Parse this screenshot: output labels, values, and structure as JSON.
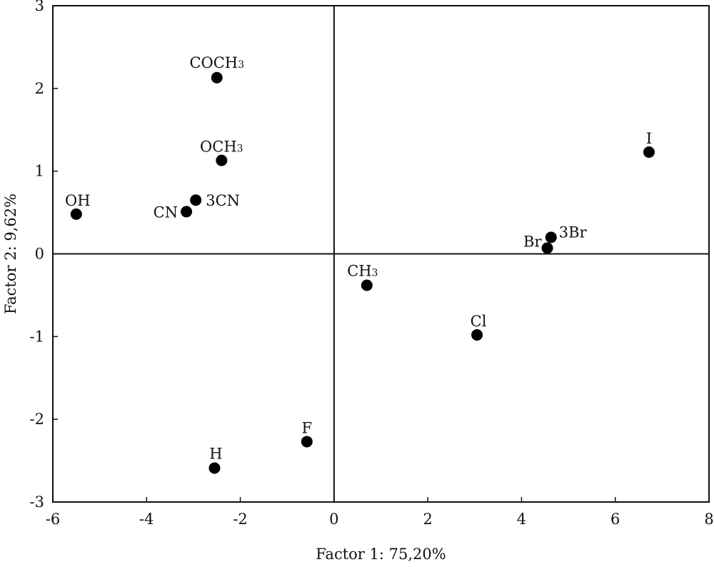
{
  "chart_data": {
    "type": "scatter",
    "title": "",
    "xlabel": "Factor 1: 75,20%",
    "ylabel": "Factor 2:  9,62%",
    "xlim": [
      -6,
      8
    ],
    "ylim": [
      -3,
      3
    ],
    "xticks": [
      -6,
      -4,
      -2,
      0,
      2,
      4,
      6,
      8
    ],
    "yticks": [
      -3,
      -2,
      -1,
      0,
      1,
      2,
      3
    ],
    "grid": false,
    "zero_lines": true,
    "point_color": "#000000",
    "points": [
      {
        "label": "COCH",
        "sub": "3",
        "x": -2.5,
        "y": 2.13
      },
      {
        "label": "OCH",
        "sub": "3",
        "x": -2.4,
        "y": 1.13
      },
      {
        "label": "OH",
        "sub": "",
        "x": -5.5,
        "y": 0.48
      },
      {
        "label": "CN",
        "sub": "",
        "x": -3.15,
        "y": 0.51
      },
      {
        "label": "3CN",
        "sub": "",
        "x": -2.95,
        "y": 0.65
      },
      {
        "label": "I",
        "sub": "",
        "x": 6.72,
        "y": 1.23
      },
      {
        "label": "3Br",
        "sub": "",
        "x": 4.63,
        "y": 0.2
      },
      {
        "label": "Br",
        "sub": "",
        "x": 4.55,
        "y": 0.07
      },
      {
        "label": "CH",
        "sub": "3",
        "x": 0.7,
        "y": -0.38
      },
      {
        "label": "Cl",
        "sub": "",
        "x": 3.05,
        "y": -0.98
      },
      {
        "label": "F",
        "sub": "",
        "x": -0.58,
        "y": -2.27
      },
      {
        "label": "H",
        "sub": "",
        "x": -2.55,
        "y": -2.59
      }
    ]
  }
}
